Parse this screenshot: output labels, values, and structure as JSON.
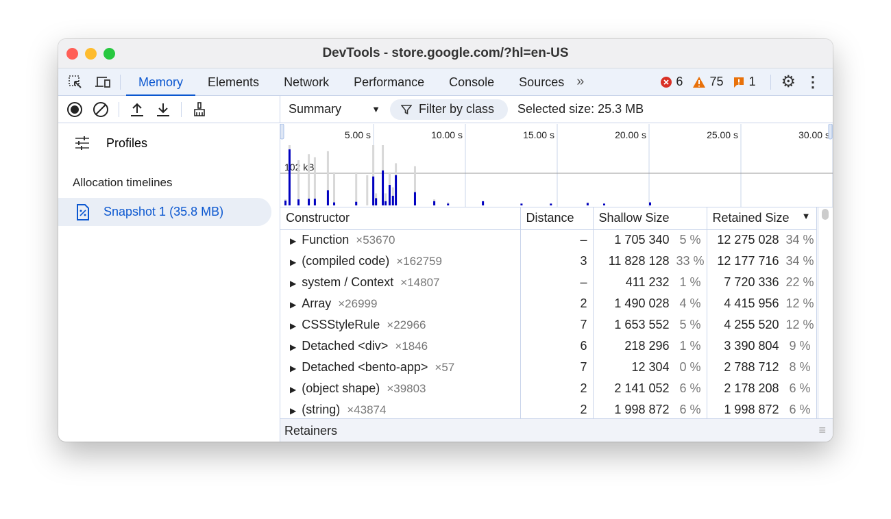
{
  "window": {
    "title": "DevTools - store.google.com/?hl=en-US"
  },
  "tabs": [
    {
      "label": "Memory",
      "active": true
    },
    {
      "label": "Elements"
    },
    {
      "label": "Network"
    },
    {
      "label": "Performance"
    },
    {
      "label": "Console"
    },
    {
      "label": "Sources"
    }
  ],
  "status": {
    "errors": "6",
    "warnings": "75",
    "issues": "1"
  },
  "toolbar": {
    "view": "Summary",
    "filter": "Filter by class",
    "selected_size": "Selected size: 25.3 MB"
  },
  "sidebar": {
    "profiles": "Profiles",
    "section": "Allocation timelines",
    "snapshot": "Snapshot 1 (35.8 MB)"
  },
  "timeline": {
    "ticks": [
      "5.00 s",
      "10.00 s",
      "15.00 s",
      "20.00 s",
      "25.00 s",
      "30.00 s"
    ],
    "scale_label": "102 kB",
    "bars": [
      [
        0.15,
        0.08,
        0.1
      ],
      [
        0.37,
        0.93,
        1.0
      ],
      [
        0.86,
        0.1,
        0.75
      ],
      [
        1.42,
        0.11,
        0.85
      ],
      [
        1.75,
        0.11,
        0.8
      ],
      [
        2.46,
        0.25,
        0.9
      ],
      [
        2.8,
        0.05,
        0.55
      ],
      [
        4.0,
        0.06,
        0.55
      ],
      [
        4.6,
        0,
        0.5
      ],
      [
        4.93,
        0.48,
        1.0
      ],
      [
        5.08,
        0.12,
        0.2
      ],
      [
        5.45,
        0.58,
        1.0
      ],
      [
        5.6,
        0.07,
        0.2
      ],
      [
        5.82,
        0.34,
        0.55
      ],
      [
        6.0,
        0.16,
        0.3
      ],
      [
        6.16,
        0.5,
        0.7
      ],
      [
        7.2,
        0.22,
        0.65
      ],
      [
        8.25,
        0.07,
        0.1
      ],
      [
        9.0,
        0.03,
        0.05
      ],
      [
        10.9,
        0.07,
        0.05
      ],
      [
        13.0,
        0.03,
        0.03
      ],
      [
        14.6,
        0.03,
        0.03
      ],
      [
        16.6,
        0.04,
        0.05
      ],
      [
        17.5,
        0.03,
        0.03
      ],
      [
        20.0,
        0.05,
        0.05
      ]
    ]
  },
  "table": {
    "headers": [
      "Constructor",
      "Distance",
      "Shallow Size",
      "Retained Size"
    ],
    "rows": [
      {
        "name": "Function",
        "count": "×53670",
        "distance": "–",
        "shallow": "1 705 340",
        "shallow_pct": "5 %",
        "retained": "12 275 028",
        "retained_pct": "34 %"
      },
      {
        "name": "(compiled code)",
        "count": "×162759",
        "distance": "3",
        "shallow": "11 828 128",
        "shallow_pct": "33 %",
        "retained": "12 177 716",
        "retained_pct": "34 %"
      },
      {
        "name": "system / Context",
        "count": "×14807",
        "distance": "–",
        "shallow": "411 232",
        "shallow_pct": "1 %",
        "retained": "7 720 336",
        "retained_pct": "22 %"
      },
      {
        "name": "Array",
        "count": "×26999",
        "distance": "2",
        "shallow": "1 490 028",
        "shallow_pct": "4 %",
        "retained": "4 415 956",
        "retained_pct": "12 %"
      },
      {
        "name": "CSSStyleRule",
        "count": "×22966",
        "distance": "7",
        "shallow": "1 653 552",
        "shallow_pct": "5 %",
        "retained": "4 255 520",
        "retained_pct": "12 %"
      },
      {
        "name": "Detached <div>",
        "count": "×1846",
        "distance": "6",
        "shallow": "218 296",
        "shallow_pct": "1 %",
        "retained": "3 390 804",
        "retained_pct": "9 %"
      },
      {
        "name": "Detached <bento-app>",
        "count": "×57",
        "distance": "7",
        "shallow": "12 304",
        "shallow_pct": "0 %",
        "retained": "2 788 712",
        "retained_pct": "8 %"
      },
      {
        "name": "(object shape)",
        "count": "×39803",
        "distance": "2",
        "shallow": "2 141 052",
        "shallow_pct": "6 %",
        "retained": "2 178 208",
        "retained_pct": "6 %"
      },
      {
        "name": "(string)",
        "count": "×43874",
        "distance": "2",
        "shallow": "1 998 872",
        "shallow_pct": "6 %",
        "retained": "1 998 872",
        "retained_pct": "6 %"
      }
    ]
  },
  "retainers": "Retainers",
  "colors": {
    "accent": "#0b57d0",
    "bar_blue": "#0000c0",
    "bar_gray": "#d8d8d8",
    "error": "#d93025",
    "warning": "#e8710a"
  }
}
